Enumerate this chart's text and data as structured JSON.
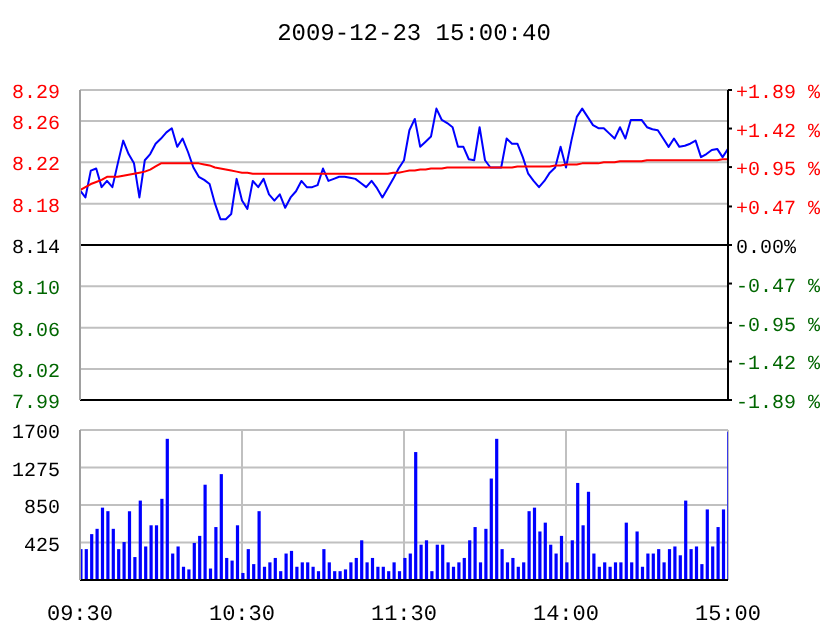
{
  "chart_data": [
    {
      "type": "line",
      "title": "2009-12-23 15:00:40",
      "categories": [
        null,
        null,
        null,
        null,
        null,
        null,
        null,
        null,
        null,
        null,
        null,
        null,
        null,
        null,
        null,
        null,
        null,
        null,
        null,
        null,
        null,
        null,
        null,
        null,
        null,
        null,
        null,
        null,
        null,
        null,
        null,
        null,
        null,
        null,
        null,
        null,
        null,
        null,
        null,
        null,
        null,
        null,
        null,
        null,
        null,
        null,
        null,
        null,
        null,
        null,
        null,
        null,
        null,
        null,
        null,
        null,
        null,
        null,
        null,
        null,
        null,
        null,
        null,
        null,
        null,
        null,
        null,
        null,
        null,
        null,
        null,
        null,
        null,
        null,
        null,
        null,
        null,
        null,
        null,
        null,
        null,
        null,
        null,
        null,
        null,
        null,
        null,
        null,
        null,
        null,
        null,
        null,
        null,
        null,
        null,
        null,
        null,
        null,
        null,
        null,
        null,
        null,
        null,
        null,
        null,
        null,
        null,
        null,
        null,
        null,
        null,
        null,
        null,
        null,
        null,
        null,
        null,
        null,
        null,
        null,
        null
      ],
      "ylim": [
        7.99,
        8.29
      ],
      "yticks": [
        8.29,
        8.26,
        8.22,
        8.18,
        8.14,
        {
          "value": 8.1,
          "label": "8.10"
        },
        8.06,
        8.02,
        7.99
      ],
      "y2lim": [
        -1.89,
        1.89
      ],
      "y2ticks": [
        {
          "value": 1.89,
          "label": "+1.89 %"
        },
        {
          "value": 1.42,
          "label": "+1.42 %"
        },
        {
          "value": 0.95,
          "label": "+0.95 %"
        },
        {
          "value": 0.47,
          "label": "+0.47 %"
        },
        {
          "value": 0,
          "label": "0.00%"
        },
        {
          "value": -0.47,
          "label": "-0.47 %"
        },
        {
          "value": -0.95,
          "label": "-0.95 %"
        },
        {
          "value": -1.42,
          "label": "-1.42 %"
        },
        {
          "value": -1.89,
          "label": "-1.89 %"
        }
      ],
      "grid": "y",
      "tick_labels": "y",
      "ref_lines": [
        {
          "axis": "y",
          "value": 8.14,
          "color": "#000000"
        }
      ],
      "series": [
        {
          "color": "#0000ff",
          "values": [
            8.193,
            8.186,
            8.212,
            8.214,
            8.196,
            8.202,
            8.196,
            8.219,
            8.241,
            8.228,
            8.219,
            8.186,
            8.222,
            8.228,
            8.238,
            8.243,
            8.249,
            8.253,
            8.235,
            8.243,
            8.23,
            8.215,
            8.206,
            8.203,
            8.199,
            8.18,
            8.165,
            8.165,
            8.17,
            8.204,
            8.183,
            8.175,
            8.202,
            8.196,
            8.204,
            8.189,
            8.183,
            8.189,
            8.176,
            8.186,
            8.192,
            8.202,
            8.196,
            8.196,
            8.198,
            8.214,
            8.202,
            8.204,
            8.206,
            8.206,
            8.205,
            8.204,
            8.2,
            8.196,
            8.202,
            8.195,
            8.186,
            8.195,
            8.204,
            8.214,
            8.222,
            8.251,
            8.262,
            8.235,
            8.24,
            8.245,
            8.272,
            8.261,
            8.258,
            8.254,
            8.235,
            8.235,
            8.223,
            8.222,
            8.254,
            8.222,
            8.215,
            8.215,
            8.215,
            8.243,
            8.238,
            8.238,
            8.225,
            8.209,
            8.202,
            8.196,
            8.202,
            8.21,
            8.215,
            8.235,
            8.215,
            8.241,
            8.264,
            8.272,
            8.264,
            8.256,
            8.253,
            8.253,
            8.248,
            8.243,
            8.254,
            8.243,
            8.261,
            8.261,
            8.261,
            8.254,
            8.252,
            8.251,
            8.243,
            8.235,
            8.243,
            8.235,
            8.236,
            8.238,
            8.241,
            8.225,
            8.228,
            8.232,
            8.233,
            8.225,
            8.233
          ]
        },
        {
          "color": "#ff0000",
          "values": [
            8.193,
            8.196,
            8.199,
            8.201,
            8.203,
            8.206,
            8.206,
            8.206,
            8.207,
            8.208,
            8.209,
            8.21,
            8.211,
            8.213,
            8.216,
            8.219,
            8.219,
            8.219,
            8.219,
            8.219,
            8.219,
            8.219,
            8.219,
            8.218,
            8.217,
            8.215,
            8.214,
            8.213,
            8.212,
            8.211,
            8.21,
            8.21,
            8.209,
            8.209,
            8.209,
            8.209,
            8.209,
            8.209,
            8.209,
            8.209,
            8.209,
            8.209,
            8.209,
            8.209,
            8.209,
            8.209,
            8.209,
            8.209,
            8.209,
            8.209,
            8.209,
            8.209,
            8.209,
            8.209,
            8.209,
            8.209,
            8.209,
            8.209,
            8.21,
            8.21,
            8.211,
            8.212,
            8.212,
            8.213,
            8.213,
            8.214,
            8.214,
            8.214,
            8.215,
            8.215,
            8.215,
            8.215,
            8.215,
            8.215,
            8.215,
            8.215,
            8.215,
            8.215,
            8.215,
            8.215,
            8.215,
            8.216,
            8.216,
            8.216,
            8.216,
            8.216,
            8.216,
            8.216,
            8.217,
            8.217,
            8.218,
            8.218,
            8.218,
            8.219,
            8.219,
            8.219,
            8.219,
            8.22,
            8.22,
            8.22,
            8.221,
            8.221,
            8.221,
            8.221,
            8.221,
            8.222,
            8.222,
            8.222,
            8.222,
            8.222,
            8.222,
            8.222,
            8.222,
            8.222,
            8.222,
            8.222,
            8.222,
            8.222,
            8.222,
            8.223,
            8.223
          ]
        }
      ]
    },
    {
      "type": "bar",
      "categories": [
        "09:30",
        null,
        null,
        null,
        null,
        null,
        null,
        null,
        null,
        null,
        null,
        null,
        null,
        null,
        null,
        null,
        null,
        null,
        null,
        null,
        null,
        null,
        null,
        null,
        null,
        null,
        null,
        null,
        null,
        null,
        "10:30",
        null,
        null,
        null,
        null,
        null,
        null,
        null,
        null,
        null,
        null,
        null,
        null,
        null,
        null,
        null,
        null,
        null,
        null,
        null,
        null,
        null,
        null,
        null,
        null,
        null,
        null,
        null,
        null,
        null,
        "11:30",
        null,
        null,
        null,
        null,
        null,
        null,
        null,
        null,
        null,
        null,
        null,
        null,
        null,
        null,
        null,
        null,
        null,
        null,
        null,
        null,
        null,
        null,
        null,
        null,
        null,
        null,
        null,
        null,
        null,
        "14:00",
        null,
        null,
        null,
        null,
        null,
        null,
        null,
        null,
        null,
        null,
        null,
        null,
        null,
        null,
        null,
        null,
        null,
        null,
        null,
        null,
        null,
        null,
        null,
        null,
        null,
        null,
        null,
        null,
        null,
        "15:00"
      ],
      "ylim": [
        0,
        1700
      ],
      "yticks": [
        425,
        850,
        1275,
        1700
      ],
      "grid": true,
      "values": [
        350,
        350,
        520,
        580,
        820,
        780,
        580,
        350,
        430,
        780,
        260,
        900,
        380,
        620,
        620,
        920,
        1600,
        300,
        380,
        150,
        120,
        420,
        500,
        1080,
        130,
        600,
        1200,
        250,
        220,
        620,
        80,
        350,
        180,
        780,
        150,
        200,
        250,
        100,
        300,
        330,
        150,
        200,
        200,
        150,
        100,
        350,
        200,
        100,
        100,
        120,
        200,
        250,
        450,
        200,
        250,
        150,
        150,
        100,
        200,
        100,
        250,
        300,
        1450,
        400,
        450,
        100,
        400,
        400,
        200,
        150,
        200,
        250,
        450,
        600,
        200,
        580,
        1150,
        1600,
        350,
        200,
        250,
        150,
        200,
        780,
        820,
        550,
        650,
        400,
        300,
        500,
        200,
        450,
        1100,
        620,
        1000,
        300,
        150,
        200,
        150,
        200,
        200,
        650,
        200,
        550,
        150,
        300,
        300,
        350,
        200,
        350,
        380,
        280,
        900,
        350,
        380,
        180,
        800,
        380,
        600,
        800,
        1680
      ],
      "color": "#0000ff"
    }
  ]
}
